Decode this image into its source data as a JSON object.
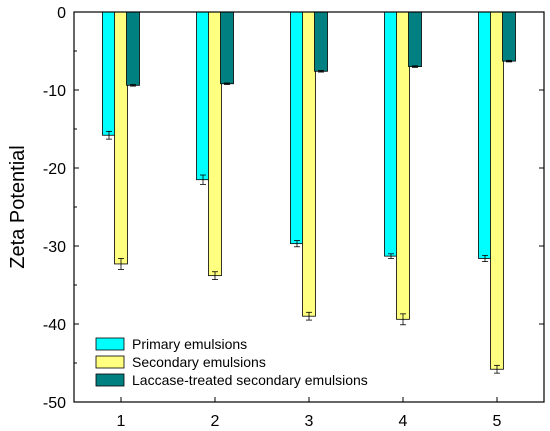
{
  "chart_data": {
    "type": "bar",
    "xlabel": "",
    "ylabel": "Zeta Potential",
    "ylim": [
      -50,
      0
    ],
    "yticks": [
      0,
      -10,
      -20,
      -30,
      -40,
      -50
    ],
    "categories": [
      "1",
      "2",
      "3",
      "4",
      "5"
    ],
    "legend_position": "bottom-left",
    "series": [
      {
        "name": "Primary emulsions",
        "color": "#00FFFF",
        "values": [
          -15.8,
          -21.5,
          -29.7,
          -31.3,
          -31.6
        ],
        "errors": [
          0.5,
          0.6,
          0.4,
          0.3,
          0.4
        ]
      },
      {
        "name": "Secondary emulsions",
        "color": "#FFFF80",
        "values": [
          -32.3,
          -33.8,
          -39.0,
          -39.4,
          -45.8
        ],
        "errors": [
          0.7,
          0.5,
          0.5,
          0.7,
          0.5
        ]
      },
      {
        "name": "Laccase-treated secondary emulsions",
        "color": "#008080",
        "values": [
          -9.4,
          -9.2,
          -7.6,
          -7.0,
          -6.3
        ],
        "errors": [
          0.1,
          0.1,
          0.1,
          0.1,
          0.1
        ]
      }
    ]
  }
}
